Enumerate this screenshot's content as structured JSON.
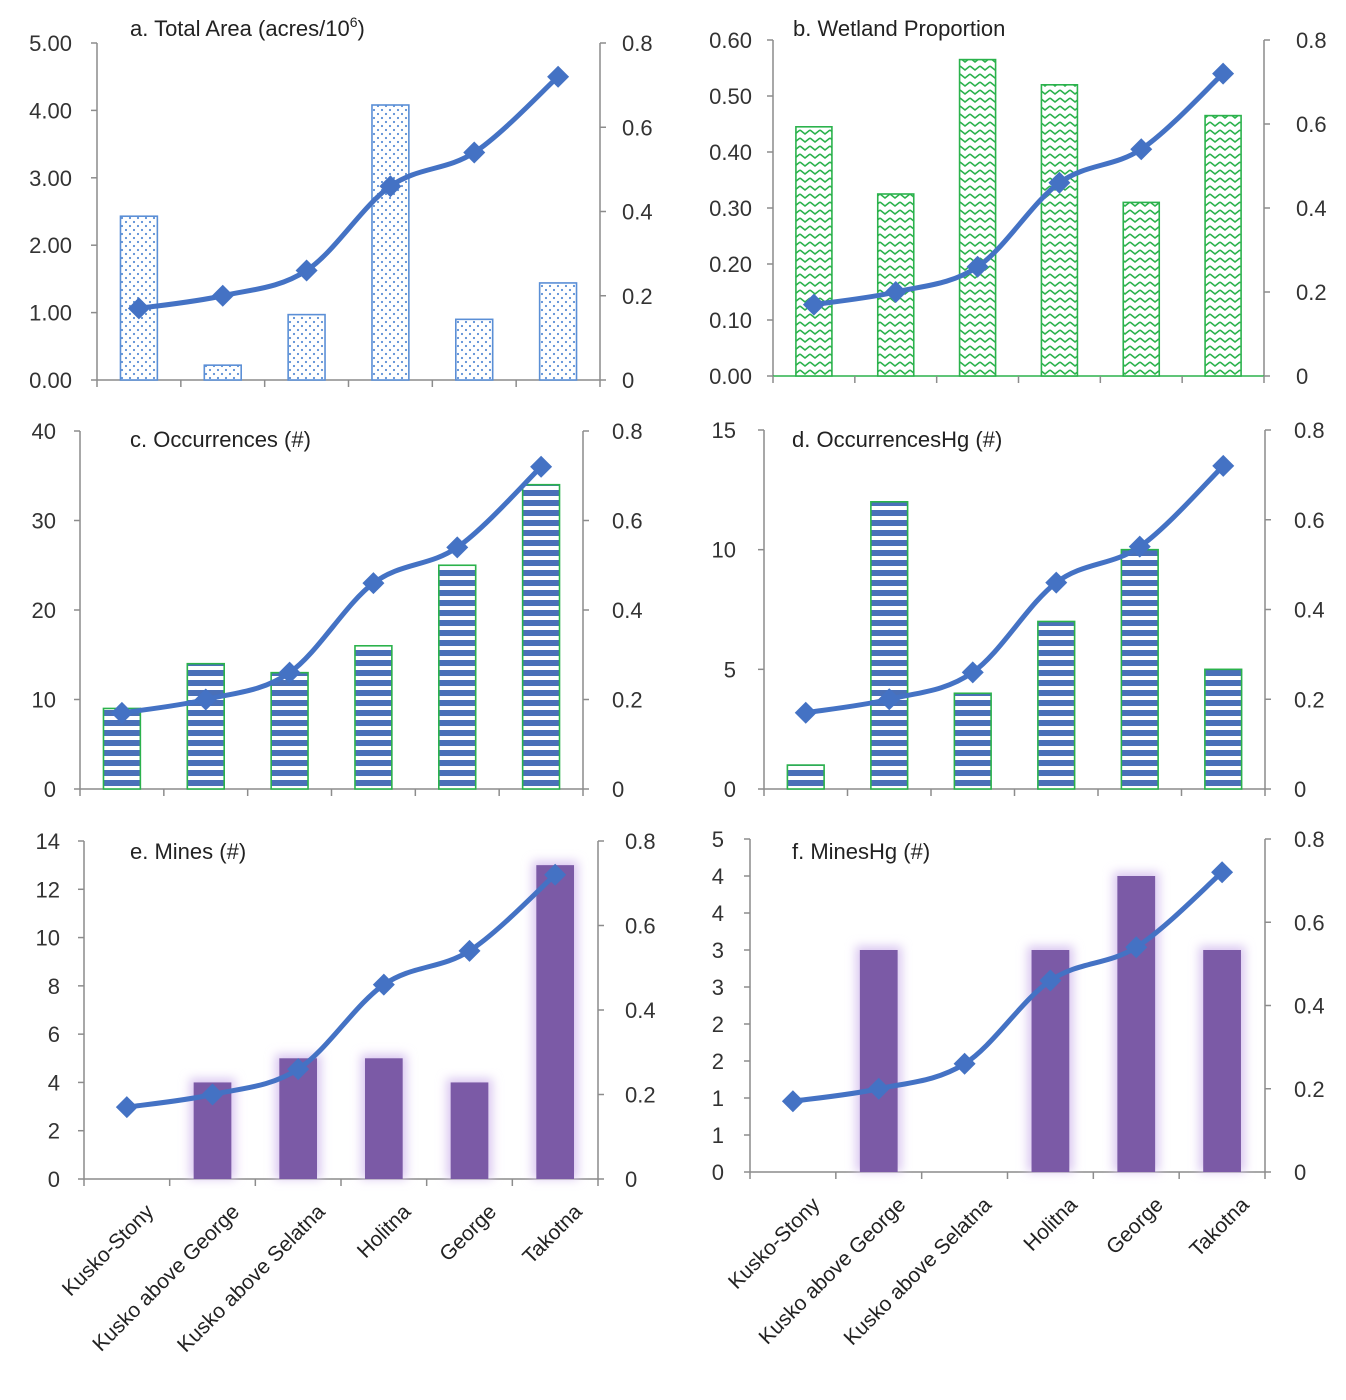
{
  "chart_data": [
    {
      "id": "a",
      "type": "bar+line",
      "title": "a. Total Area (acres/10",
      "title_superscript": "6",
      "title_suffix": ")",
      "categories": [
        "Kusko-Stony",
        "Kusko above George",
        "Kusko above Selatna",
        "Holitna",
        "George",
        "Takotna"
      ],
      "bar_values": [
        2.43,
        0.22,
        0.97,
        4.08,
        0.9,
        1.44
      ],
      "line_values": [
        0.17,
        0.2,
        0.26,
        0.46,
        0.54,
        0.72
      ],
      "y_left": {
        "min": 0,
        "max": 5,
        "ticks": [
          "0.00",
          "1.00",
          "2.00",
          "3.00",
          "4.00",
          "5.00"
        ]
      },
      "y_right": {
        "min": 0,
        "max": 0.8,
        "ticks": [
          "0",
          "0.2",
          "0.4",
          "0.6",
          "0.8"
        ]
      },
      "bar_style": "dotted",
      "bar_color": "#5b8fd6",
      "line_color": "#4472c4"
    },
    {
      "id": "b",
      "type": "bar+line",
      "title": "b. Wetland Proportion",
      "categories": [
        "Kusko-Stony",
        "Kusko above George",
        "Kusko above Selatna",
        "Holitna",
        "George",
        "Takotna"
      ],
      "bar_values": [
        0.445,
        0.325,
        0.565,
        0.52,
        0.31,
        0.465
      ],
      "line_values": [
        0.17,
        0.2,
        0.26,
        0.46,
        0.54,
        0.72
      ],
      "y_left": {
        "min": 0,
        "max": 0.6,
        "ticks": [
          "0.00",
          "0.10",
          "0.20",
          "0.30",
          "0.40",
          "0.50",
          "0.60"
        ]
      },
      "y_right": {
        "min": 0,
        "max": 0.8,
        "ticks": [
          "0",
          "0.2",
          "0.4",
          "0.6",
          "0.8"
        ]
      },
      "bar_style": "zigzag",
      "bar_color": "#2bb24c",
      "line_color": "#4472c4"
    },
    {
      "id": "c",
      "type": "bar+line",
      "title": "c. Occurrences (#)",
      "categories": [
        "Kusko-Stony",
        "Kusko above George",
        "Kusko above Selatna",
        "Holitna",
        "George",
        "Takotna"
      ],
      "bar_values": [
        9,
        14,
        13,
        16,
        25,
        34
      ],
      "line_values": [
        0.17,
        0.2,
        0.26,
        0.46,
        0.54,
        0.72
      ],
      "y_left": {
        "min": 0,
        "max": 40,
        "ticks": [
          "0",
          "10",
          "20",
          "30",
          "40"
        ]
      },
      "y_right": {
        "min": 0,
        "max": 0.8,
        "ticks": [
          "0",
          "0.2",
          "0.4",
          "0.6",
          "0.8"
        ]
      },
      "bar_style": "stripes",
      "bar_color": "#4a70b8",
      "bar_border": "#2bb24c",
      "line_color": "#4472c4"
    },
    {
      "id": "d",
      "type": "bar+line",
      "title": "d. OccurrencesHg (#)",
      "categories": [
        "Kusko-Stony",
        "Kusko above George",
        "Kusko above Selatna",
        "Holitna",
        "George",
        "Takotna"
      ],
      "bar_values": [
        1,
        12,
        4,
        7,
        10,
        5
      ],
      "line_values": [
        0.17,
        0.2,
        0.26,
        0.46,
        0.54,
        0.72
      ],
      "y_left": {
        "min": 0,
        "max": 15,
        "ticks": [
          "0",
          "5",
          "10",
          "15"
        ]
      },
      "y_right": {
        "min": 0,
        "max": 0.8,
        "ticks": [
          "0",
          "0.2",
          "0.4",
          "0.6",
          "0.8"
        ]
      },
      "bar_style": "stripes",
      "bar_color": "#4a70b8",
      "bar_border": "#2bb24c",
      "line_color": "#4472c4"
    },
    {
      "id": "e",
      "type": "bar+line",
      "title": "e. Mines (#)",
      "categories": [
        "Kusko-Stony",
        "Kusko above George",
        "Kusko above Selatna",
        "Holitna",
        "George",
        "Takotna"
      ],
      "bar_values": [
        0,
        4,
        5,
        5,
        4,
        13
      ],
      "line_values": [
        0.17,
        0.2,
        0.26,
        0.46,
        0.54,
        0.72
      ],
      "y_left": {
        "min": 0,
        "max": 14,
        "ticks": [
          "0",
          "2",
          "4",
          "6",
          "8",
          "10",
          "12",
          "14"
        ]
      },
      "y_right": {
        "min": 0,
        "max": 0.8,
        "ticks": [
          "0",
          "0.2",
          "0.4",
          "0.6",
          "0.8"
        ]
      },
      "bar_style": "glow",
      "bar_color": "#7b5aa6",
      "bar_glow": "#d9c6f0",
      "line_color": "#4472c4"
    },
    {
      "id": "f",
      "type": "bar+line",
      "title": "f. MinesHg (#)",
      "categories": [
        "Kusko-Stony",
        "Kusko above George",
        "Kusko above Selatna",
        "Holitna",
        "George",
        "Takotna"
      ],
      "bar_values": [
        0,
        3,
        0,
        3,
        4,
        3
      ],
      "line_values": [
        0.17,
        0.2,
        0.26,
        0.46,
        0.54,
        0.72
      ],
      "y_left": {
        "min": 0,
        "max": 4.5,
        "ticks": [
          "0",
          "1",
          "1",
          "2",
          "2",
          "3",
          "3",
          "4",
          "4",
          "5"
        ]
      },
      "y_right": {
        "min": 0,
        "max": 0.8,
        "ticks": [
          "0",
          "0.2",
          "0.4",
          "0.6",
          "0.8"
        ]
      },
      "bar_style": "glow",
      "bar_color": "#7b5aa6",
      "bar_glow": "#d9c6f0",
      "line_color": "#4472c4"
    }
  ]
}
